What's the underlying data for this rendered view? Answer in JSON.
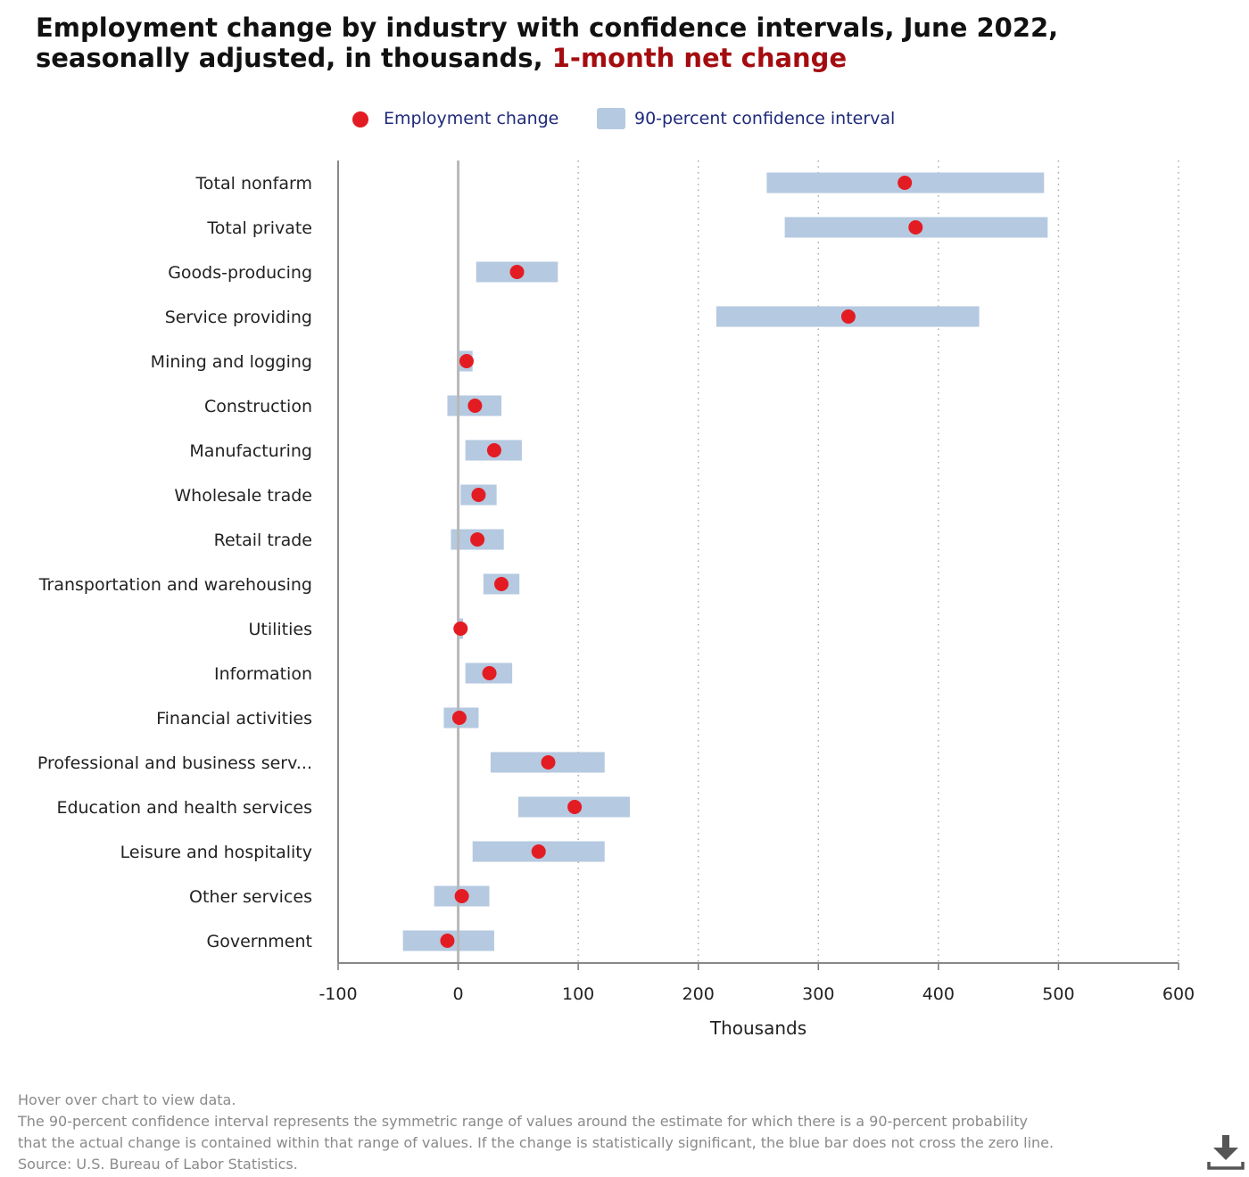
{
  "title": {
    "main": "Employment change by industry with confidence intervals, June 2022, seasonally adjusted, in thousands,",
    "highlight": "1-month net change"
  },
  "legend": {
    "point_label": "Employment change",
    "interval_label": "90-percent confidence interval"
  },
  "colors": {
    "point": "#e31c23",
    "interval": "#b5c9e0",
    "title_highlight": "#a40d10",
    "legend_text": "#1f2a7a"
  },
  "chart_data": {
    "type": "scatter",
    "orientation": "horizontal",
    "xlabel": "Thousands",
    "xlim": [
      -100,
      600
    ],
    "xticks": [
      "-100",
      "0",
      "100",
      "200",
      "300",
      "400",
      "500",
      "600"
    ],
    "grid": "vertical dotted",
    "legend_position": "top",
    "categories": [
      "Total nonfarm",
      "Total private",
      "Goods-producing",
      "Service providing",
      "Mining and logging",
      "Construction",
      "Manufacturing",
      "Wholesale trade",
      "Retail trade",
      "Transportation and warehousing",
      "Utilities",
      "Information",
      "Financial activities",
      "Professional and business serv...",
      "Education and health services",
      "Leisure and hospitality",
      "Other services",
      "Government"
    ],
    "series": [
      {
        "name": "Employment change",
        "values": [
          372,
          381,
          49,
          325,
          7,
          14,
          30,
          17,
          16,
          36,
          2,
          26,
          1,
          75,
          97,
          67,
          3,
          -9
        ]
      },
      {
        "name": "90-percent confidence interval",
        "low": [
          257,
          272,
          15,
          215,
          1,
          -9,
          6,
          2,
          -6,
          21,
          0,
          6,
          -12,
          27,
          50,
          12,
          -20,
          -46
        ],
        "high": [
          488,
          491,
          83,
          434,
          12,
          36,
          53,
          32,
          38,
          51,
          4,
          45,
          17,
          122,
          143,
          122,
          26,
          30
        ]
      }
    ]
  },
  "footer": {
    "line1": "Hover over chart to view data.",
    "line2": "The 90-percent confidence interval represents the symmetric range of values around the estimate for which there is a 90-percent probability",
    "line3": "that the actual change is contained within that range of values. If the change is statistically significant, the blue bar does not cross the zero line.",
    "line4": "Source: U.S. Bureau of Labor Statistics."
  },
  "icons": {
    "download": "download-icon"
  }
}
